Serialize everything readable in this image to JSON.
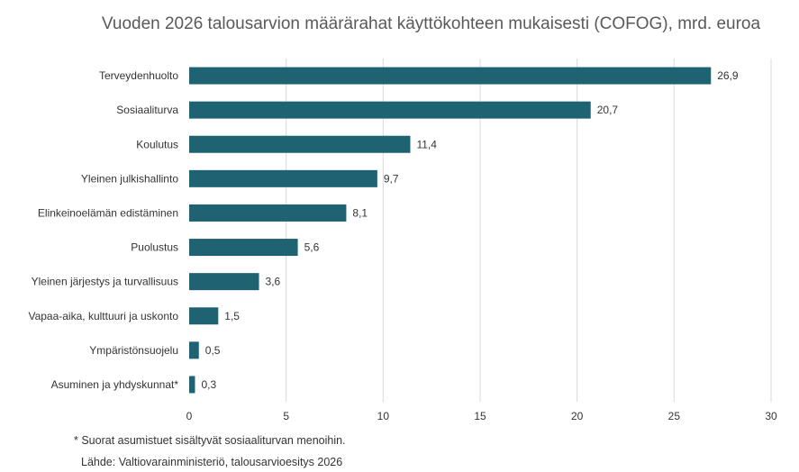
{
  "chart_data": {
    "type": "bar",
    "orientation": "horizontal",
    "title": "Vuoden 2026 talousarvion määrärahat käyttökohteen mukaisesti (COFOG), mrd. euroa",
    "categories": [
      "Terveydenhuolto",
      "Sosiaaliturva",
      "Koulutus",
      "Yleinen julkishallinto",
      "Elinkeinoelämän edistäminen",
      "Puolustus",
      "Yleinen järjestys ja turvallisuus",
      "Vapaa-aika, kulttuuri ja uskonto",
      "Ympäristönsuojelu",
      "Asuminen ja yhdyskunnat*"
    ],
    "values": [
      26.9,
      20.7,
      11.4,
      9.7,
      8.1,
      5.6,
      3.6,
      1.5,
      0.5,
      0.3
    ],
    "value_labels": [
      "26,9",
      "20,7",
      "11,4",
      "9,7",
      "8,1",
      "5,6",
      "3,6",
      "1,5",
      "0,5",
      "0,3"
    ],
    "xlim": [
      0,
      30
    ],
    "xticks": [
      "0",
      "5",
      "10",
      "15",
      "20",
      "25",
      "30"
    ],
    "grid": "vertical",
    "legend": "none",
    "bar_color": "#1f6373"
  },
  "footnotes": {
    "note": "* Suorat asumistuet sisältyvät sosiaaliturvan menoihin.",
    "source": "Lähde: Valtiovarainministeriö, talousarvioesitys 2026"
  }
}
